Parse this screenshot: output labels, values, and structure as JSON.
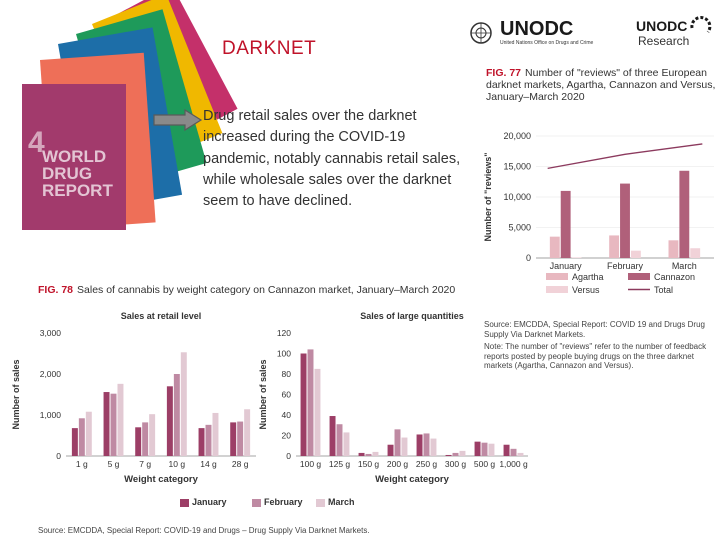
{
  "slide": {
    "title": "DARKNET",
    "description": "Drug retail sales over the darknet increased during the COVID-19 pandemic, notably cannabis retail sales, while wholesale sales over the darknet seem  to have declined."
  },
  "report_cover": {
    "lines": [
      "WORLD",
      "DRUG",
      "REPORT"
    ],
    "year_num": "4"
  },
  "logos": {
    "unodc_main": "UNODC",
    "unodc_sub": "United Nations Office on Drugs and Crime",
    "research_top": "UNODC",
    "research_bottom": "Research"
  },
  "fig77": {
    "num": "FIG. 77",
    "title": "Number of \"reviews\" of three European darknet markets, Agartha, Cannazon and Versus, January–March 2020",
    "source": "Source: EMCDDA, Special Report: COVID 19 and Drugs Drug Supply Via Darknet Markets.",
    "note": "Note: The number of \"reviews\" refer to the number of feedback reports posted by people buying drugs on the three darknet markets (Agartha, Cannazon and Versus)."
  },
  "fig78": {
    "num": "FIG. 78",
    "title": "Sales of cannabis by weight category on Cannazon market, January–March 2020",
    "source": "Source: EMCDDA, Special Report: COVID-19 and Drugs – Drug Supply Via Darknet Markets."
  },
  "colors": {
    "accent_red": "#c0132a",
    "agartha": "#e8b8c0",
    "cannazon": "#b0607a",
    "versus": "#f1d2d8",
    "total": "#8c3a5e",
    "january": "#9c3e66",
    "february": "#bf8aa3",
    "march": "#e2c9d3"
  },
  "chart_data": [
    {
      "type": "bar",
      "ylabel": "Number of \"reviews\"",
      "categories": [
        "January",
        "February",
        "March"
      ],
      "ylim": [
        0,
        20000
      ],
      "yticks": [
        "0",
        "5,000",
        "10,000",
        "15,000",
        "20,000"
      ],
      "series": [
        {
          "name": "Agartha",
          "values": [
            3500,
            3700,
            2900
          ]
        },
        {
          "name": "Cannazon",
          "values": [
            11000,
            12200,
            14300
          ]
        },
        {
          "name": "Versus",
          "values": [
            100,
            1200,
            1600
          ]
        }
      ],
      "line_series": {
        "name": "Total",
        "values": [
          14700,
          17000,
          18700
        ]
      }
    },
    {
      "type": "bar",
      "title": "Sales at retail level",
      "xlabel": "Weight category",
      "ylabel": "Number of sales",
      "categories": [
        "1 g",
        "5 g",
        "7 g",
        "10 g",
        "14 g",
        "28 g"
      ],
      "ylim": [
        0,
        3000
      ],
      "yticks": [
        "0",
        "1,000",
        "2,000",
        "3,000"
      ],
      "series": [
        {
          "name": "January",
          "values": [
            680,
            1560,
            700,
            1700,
            680,
            820
          ]
        },
        {
          "name": "February",
          "values": [
            920,
            1520,
            820,
            2000,
            760,
            840
          ]
        },
        {
          "name": "March",
          "values": [
            1080,
            1760,
            1020,
            2530,
            1050,
            1140
          ]
        }
      ]
    },
    {
      "type": "bar",
      "title": "Sales of large quantities",
      "xlabel": "Weight category",
      "ylabel": "Number of sales",
      "categories": [
        "100 g",
        "125 g",
        "150 g",
        "200 g",
        "250 g",
        "300 g",
        "500 g",
        "1,000 g"
      ],
      "ylim": [
        0,
        120
      ],
      "yticks": [
        "0",
        "20",
        "40",
        "60",
        "80",
        "100",
        "120"
      ],
      "series": [
        {
          "name": "January",
          "values": [
            100,
            39,
            3,
            11,
            21,
            1,
            14,
            11
          ]
        },
        {
          "name": "February",
          "values": [
            104,
            31,
            2,
            26,
            22,
            3,
            13,
            7
          ]
        },
        {
          "name": "March",
          "values": [
            85,
            23,
            4,
            18,
            17,
            5,
            12,
            3
          ]
        }
      ],
      "legend": [
        "January",
        "February",
        "March"
      ]
    }
  ]
}
